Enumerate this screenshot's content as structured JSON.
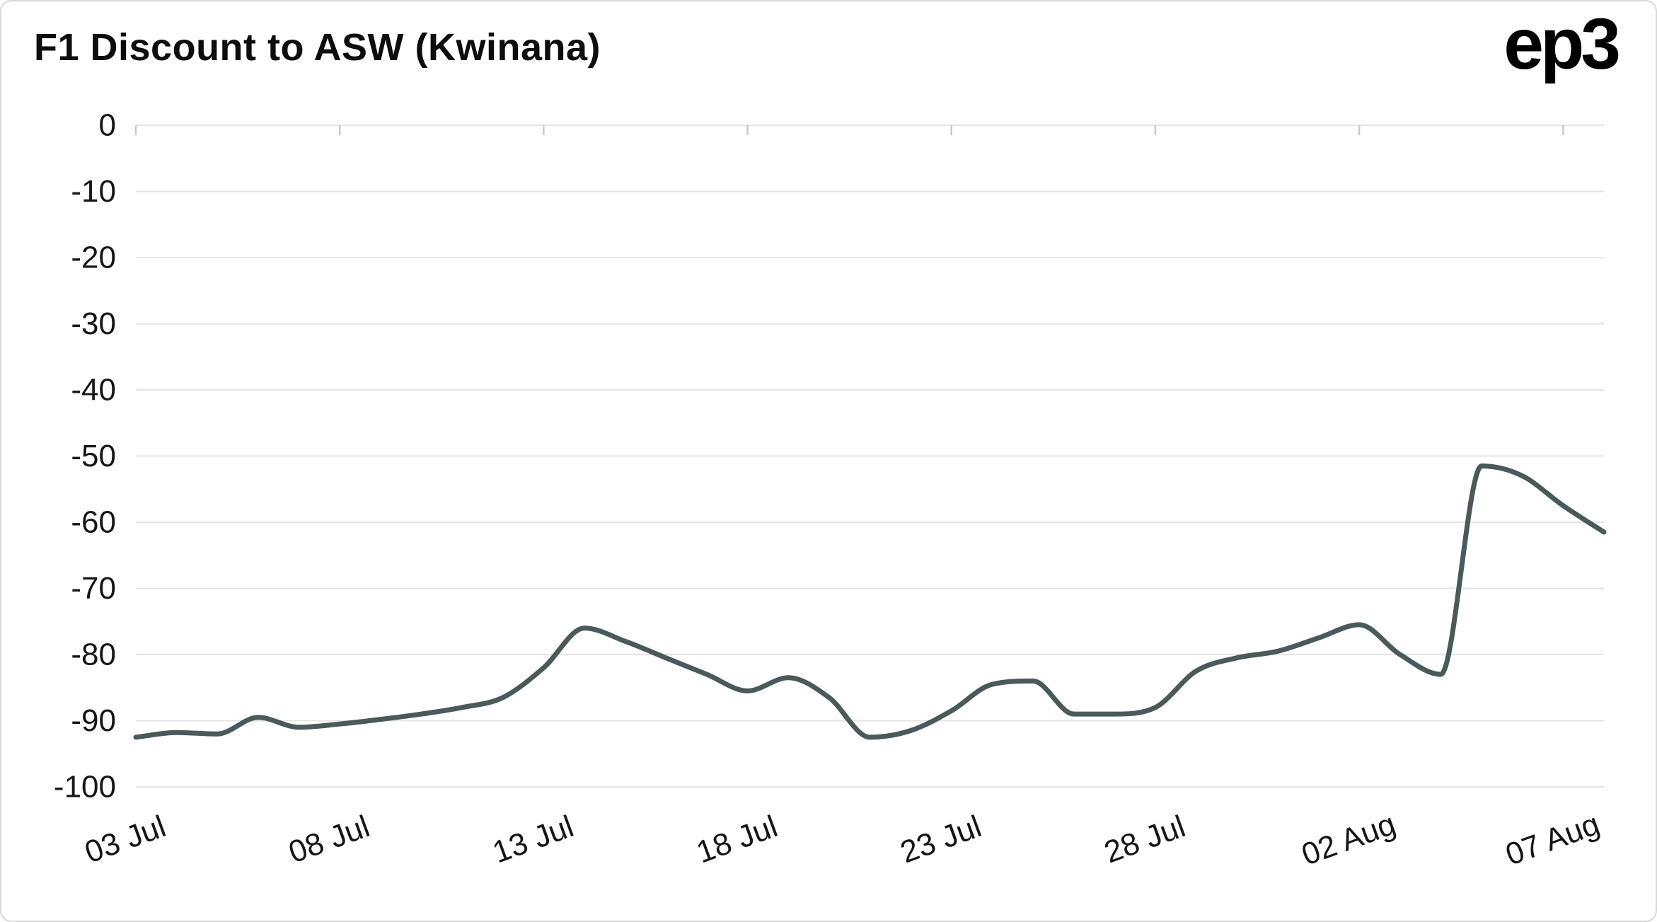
{
  "logo": {
    "text": "ep3"
  },
  "chart_data": {
    "type": "line",
    "title": "F1 Discount to ASW (Kwinana)",
    "xlabel": "",
    "ylabel": "",
    "ylim": [
      -100,
      0
    ],
    "grid": "horizontal",
    "legend": "none",
    "line_color": "#4a5a5a",
    "grid_color": "#e4e4e4",
    "tick_color": "#c9c9c9",
    "axis_label_color": "#161616",
    "series": [
      {
        "name": "F1 Discount to ASW (Kwinana)",
        "x": [
          "03 Jul",
          "04 Jul",
          "05 Jul",
          "06 Jul",
          "07 Jul",
          "08 Jul",
          "09 Jul",
          "10 Jul",
          "11 Jul",
          "12 Jul",
          "13 Jul",
          "14 Jul",
          "15 Jul",
          "16 Jul",
          "17 Jul",
          "18 Jul",
          "19 Jul",
          "20 Jul",
          "21 Jul",
          "22 Jul",
          "23 Jul",
          "24 Jul",
          "25 Jul",
          "26 Jul",
          "27 Jul",
          "28 Jul",
          "29 Jul",
          "30 Jul",
          "31 Jul",
          "01 Aug",
          "02 Aug",
          "03 Aug",
          "04 Aug",
          "05 Aug",
          "06 Aug",
          "07 Aug",
          "08 Aug"
        ],
        "values": [
          -92.5,
          -91.8,
          -92.0,
          -89.5,
          -91.0,
          -90.5,
          -89.8,
          -89.0,
          -88.0,
          -86.5,
          -82.0,
          -76.0,
          -78.0,
          -80.5,
          -83.0,
          -85.5,
          -83.5,
          -86.5,
          -92.5,
          -91.5,
          -88.5,
          -84.5,
          -84.0,
          -89.0,
          -89.0,
          -88.0,
          -82.5,
          -80.5,
          -79.5,
          -77.5,
          -75.5,
          -80.0,
          -83.0,
          -51.5,
          -53.0,
          -57.5,
          -61.5
        ]
      }
    ],
    "x_ticks": [
      {
        "index": 0,
        "label": "03 Jul"
      },
      {
        "index": 5,
        "label": "08 Jul"
      },
      {
        "index": 10,
        "label": "13 Jul"
      },
      {
        "index": 15,
        "label": "18 Jul"
      },
      {
        "index": 20,
        "label": "23 Jul"
      },
      {
        "index": 25,
        "label": "28 Jul"
      },
      {
        "index": 30,
        "label": "02 Aug"
      },
      {
        "index": 35,
        "label": "07 Aug"
      }
    ],
    "y_ticks": [
      0,
      -10,
      -20,
      -30,
      -40,
      -50,
      -60,
      -70,
      -80,
      -90,
      -100
    ]
  }
}
